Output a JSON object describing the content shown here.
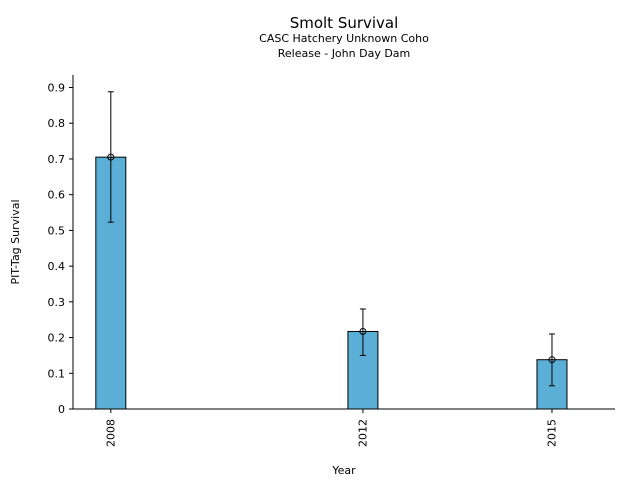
{
  "chart_data": {
    "type": "bar",
    "title": "Smolt Survival",
    "subtitle_line1": "CASC Hatchery Unknown Coho",
    "subtitle_line2": "Release - John Day Dam",
    "xlabel": "Year",
    "ylabel": "PIT-Tag Survival",
    "x": [
      2008,
      2012,
      2015
    ],
    "x_tick_labels": [
      "2008",
      "2012",
      "2015"
    ],
    "xlim": [
      2007.4,
      2016
    ],
    "values": [
      0.705,
      0.217,
      0.138
    ],
    "error_low": [
      0.523,
      0.15,
      0.065
    ],
    "error_high": [
      0.888,
      0.28,
      0.21
    ],
    "ylim": [
      0,
      0.935
    ],
    "y_ticks": [
      0,
      0.1,
      0.2,
      0.3,
      0.4,
      0.5,
      0.6,
      0.7,
      0.8,
      0.9
    ],
    "y_tick_labels": [
      "0",
      "0.1",
      "0.2",
      "0.3",
      "0.4",
      "0.5",
      "0.6",
      "0.7",
      "0.8",
      "0.9"
    ],
    "bar_color": "#5bafd6",
    "grid": false,
    "legend": "none"
  }
}
